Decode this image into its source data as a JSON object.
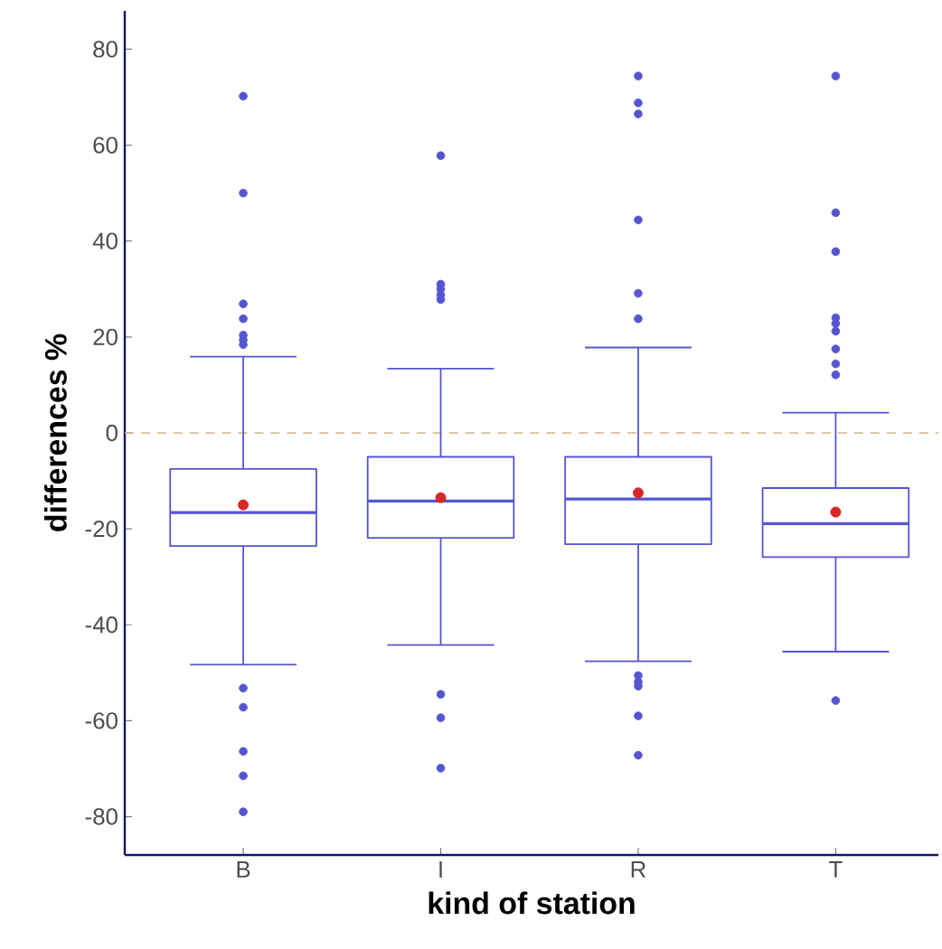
{
  "chart_data": {
    "type": "box",
    "xlabel": "kind of station",
    "ylabel": "differences %",
    "categories": [
      "B",
      "I",
      "R",
      "T"
    ],
    "ylim": [
      -88,
      88
    ],
    "yticks": [
      -80,
      -60,
      -40,
      -20,
      0,
      20,
      40,
      60,
      80
    ],
    "grid": false,
    "series": [
      {
        "type": "box",
        "color": "#5555d0",
        "boxes": [
          {
            "low": -48.3,
            "q1": -23.6,
            "median": -16.6,
            "q3": -7.5,
            "high": 15.9,
            "outliers": [
              70.2,
              50,
              26.9,
              23.8,
              20.4,
              19.4,
              18.4,
              -53.2,
              -57.2,
              -66.4,
              -71.5,
              -79
            ]
          },
          {
            "low": -44.2,
            "q1": -21.9,
            "median": -14.2,
            "q3": -5,
            "high": 13.4,
            "outliers": [
              57.8,
              31,
              30,
              28.8,
              27.8,
              -54.5,
              -59.4,
              -69.9
            ]
          },
          {
            "low": -47.6,
            "q1": -23.2,
            "median": -13.8,
            "q3": -5,
            "high": 17.8,
            "outliers": [
              74.4,
              68.8,
              66.5,
              44.4,
              29.1,
              23.8,
              -50.6,
              -51.9,
              -52.8,
              -59,
              -67.2
            ]
          },
          {
            "low": -45.6,
            "q1": -25.9,
            "median": -18.9,
            "q3": -11.5,
            "high": 4.2,
            "outliers": [
              74.4,
              45.9,
              37.8,
              24,
              22.8,
              21.2,
              17.5,
              14.4,
              12.1,
              -55.8
            ]
          }
        ]
      },
      {
        "type": "scatter",
        "color": "#d62728",
        "x": [
          "B",
          "I",
          "R",
          "T"
        ],
        "values": [
          -15,
          -13.5,
          -12.5,
          -16.5
        ]
      }
    ],
    "ref_lines": [
      {
        "axis": "y",
        "value": 0,
        "color": "#d2b48c",
        "line_style": "dashed"
      }
    ]
  }
}
